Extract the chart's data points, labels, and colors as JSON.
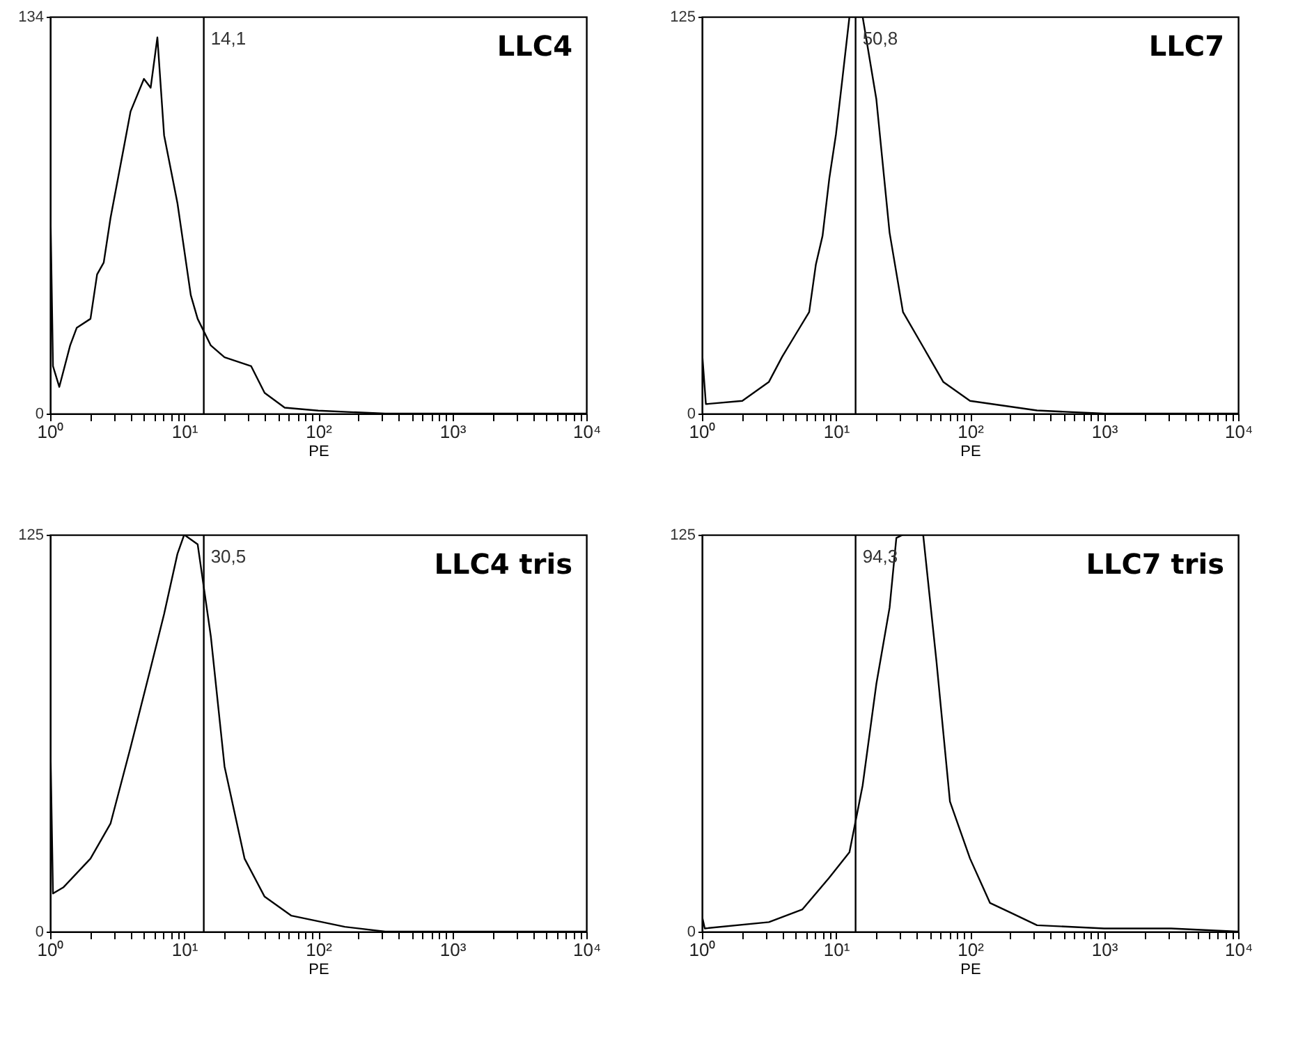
{
  "chart_data": [
    {
      "type": "line",
      "title": "LLC4",
      "xlabel": "PE",
      "log": "x",
      "color": "#000000",
      "xlim": [
        1,
        10000
      ],
      "ylim": [
        0,
        134
      ],
      "yticks": [
        0,
        134
      ],
      "xticks": [
        {
          "value": 1,
          "label": "10⁰"
        },
        {
          "value": 2,
          "label": null
        },
        {
          "value": 3,
          "label": null
        },
        {
          "value": 4,
          "label": null
        },
        {
          "value": 5,
          "label": null
        },
        {
          "value": 6,
          "label": null
        },
        {
          "value": 7,
          "label": null
        },
        {
          "value": 8,
          "label": null
        },
        {
          "value": 9,
          "label": null
        },
        {
          "value": 10,
          "label": "10¹"
        },
        {
          "value": 20,
          "label": null
        },
        {
          "value": 30,
          "label": null
        },
        {
          "value": 40,
          "label": null
        },
        {
          "value": 50,
          "label": null
        },
        {
          "value": 60,
          "label": null
        },
        {
          "value": 70,
          "label": null
        },
        {
          "value": 80,
          "label": null
        },
        {
          "value": 90,
          "label": null
        },
        {
          "value": 100,
          "label": "10²"
        },
        {
          "value": 200,
          "label": null
        },
        {
          "value": 300,
          "label": null
        },
        {
          "value": 400,
          "label": null
        },
        {
          "value": 500,
          "label": null
        },
        {
          "value": 600,
          "label": null
        },
        {
          "value": 700,
          "label": null
        },
        {
          "value": 800,
          "label": null
        },
        {
          "value": 900,
          "label": null
        },
        {
          "value": 1000,
          "label": "10³"
        },
        {
          "value": 2000,
          "label": null
        },
        {
          "value": 3000,
          "label": null
        },
        {
          "value": 4000,
          "label": null
        },
        {
          "value": 5000,
          "label": null
        },
        {
          "value": 6000,
          "label": null
        },
        {
          "value": 7000,
          "label": null
        },
        {
          "value": 8000,
          "label": null
        },
        {
          "value": 9000,
          "label": null
        },
        {
          "value": 10000,
          "label": "10⁴"
        }
      ],
      "x": [
        1,
        1.05,
        1.17,
        1.41,
        1.58,
        2,
        2.24,
        2.51,
        2.82,
        3.55,
        3.98,
        5.01,
        5.62,
        6.31,
        7.08,
        8.91,
        11.2,
        12.6,
        15.8,
        20,
        31.6,
        39.8,
        56.2,
        100,
        316,
        1000,
        3162,
        10000
      ],
      "values": [
        75,
        16,
        9,
        23,
        29,
        32,
        47,
        51,
        66,
        90,
        102,
        113,
        110,
        127,
        94,
        71,
        40,
        32,
        23,
        19,
        16,
        7,
        2,
        1,
        0,
        0,
        0,
        0
      ],
      "ref_lines": [
        {
          "axis": "x",
          "value": 14
        }
      ],
      "annotations": [
        "14,1"
      ]
    },
    {
      "type": "line",
      "title": "LLC7",
      "xlabel": "PE",
      "log": "x",
      "color": "#000000",
      "xlim": [
        1,
        10000
      ],
      "ylim": [
        0,
        125
      ],
      "yticks": [
        0,
        125
      ],
      "xticks": [
        {
          "value": 1,
          "label": "10⁰"
        },
        {
          "value": 2,
          "label": null
        },
        {
          "value": 3,
          "label": null
        },
        {
          "value": 4,
          "label": null
        },
        {
          "value": 5,
          "label": null
        },
        {
          "value": 6,
          "label": null
        },
        {
          "value": 7,
          "label": null
        },
        {
          "value": 8,
          "label": null
        },
        {
          "value": 9,
          "label": null
        },
        {
          "value": 10,
          "label": "10¹"
        },
        {
          "value": 20,
          "label": null
        },
        {
          "value": 30,
          "label": null
        },
        {
          "value": 40,
          "label": null
        },
        {
          "value": 50,
          "label": null
        },
        {
          "value": 60,
          "label": null
        },
        {
          "value": 70,
          "label": null
        },
        {
          "value": 80,
          "label": null
        },
        {
          "value": 90,
          "label": null
        },
        {
          "value": 100,
          "label": "10²"
        },
        {
          "value": 200,
          "label": null
        },
        {
          "value": 300,
          "label": null
        },
        {
          "value": 400,
          "label": null
        },
        {
          "value": 500,
          "label": null
        },
        {
          "value": 600,
          "label": null
        },
        {
          "value": 700,
          "label": null
        },
        {
          "value": 800,
          "label": null
        },
        {
          "value": 900,
          "label": null
        },
        {
          "value": 1000,
          "label": "10³"
        },
        {
          "value": 2000,
          "label": null
        },
        {
          "value": 3000,
          "label": null
        },
        {
          "value": 4000,
          "label": null
        },
        {
          "value": 5000,
          "label": null
        },
        {
          "value": 6000,
          "label": null
        },
        {
          "value": 7000,
          "label": null
        },
        {
          "value": 8000,
          "label": null
        },
        {
          "value": 9000,
          "label": null
        },
        {
          "value": 10000,
          "label": "10⁴"
        }
      ],
      "x": [
        1,
        1.07,
        2,
        3.16,
        3.98,
        5.01,
        6.31,
        7.08,
        7.94,
        8.91,
        10,
        11.2,
        12.6,
        15.8,
        20,
        25.1,
        31.6,
        44.7,
        63.1,
        100,
        316,
        1000,
        3162,
        10000
      ],
      "values": [
        20,
        3,
        4,
        10,
        18,
        25,
        32,
        47,
        56,
        74,
        88,
        106,
        125,
        125,
        99,
        57,
        32,
        21,
        10,
        4,
        1,
        0,
        0,
        0
      ],
      "ref_lines": [
        {
          "axis": "x",
          "value": 14
        }
      ],
      "annotations": [
        "50,8"
      ]
    },
    {
      "type": "line",
      "title": "LLC4 tris",
      "xlabel": "PE",
      "log": "x",
      "color": "#000000",
      "xlim": [
        1,
        10000
      ],
      "ylim": [
        0,
        125
      ],
      "yticks": [
        0,
        125
      ],
      "xticks": [
        {
          "value": 1,
          "label": "10⁰"
        },
        {
          "value": 2,
          "label": null
        },
        {
          "value": 3,
          "label": null
        },
        {
          "value": 4,
          "label": null
        },
        {
          "value": 5,
          "label": null
        },
        {
          "value": 6,
          "label": null
        },
        {
          "value": 7,
          "label": null
        },
        {
          "value": 8,
          "label": null
        },
        {
          "value": 9,
          "label": null
        },
        {
          "value": 10,
          "label": "10¹"
        },
        {
          "value": 20,
          "label": null
        },
        {
          "value": 30,
          "label": null
        },
        {
          "value": 40,
          "label": null
        },
        {
          "value": 50,
          "label": null
        },
        {
          "value": 60,
          "label": null
        },
        {
          "value": 70,
          "label": null
        },
        {
          "value": 80,
          "label": null
        },
        {
          "value": 90,
          "label": null
        },
        {
          "value": 100,
          "label": "10²"
        },
        {
          "value": 200,
          "label": null
        },
        {
          "value": 300,
          "label": null
        },
        {
          "value": 400,
          "label": null
        },
        {
          "value": 500,
          "label": null
        },
        {
          "value": 600,
          "label": null
        },
        {
          "value": 700,
          "label": null
        },
        {
          "value": 800,
          "label": null
        },
        {
          "value": 900,
          "label": null
        },
        {
          "value": 1000,
          "label": "10³"
        },
        {
          "value": 2000,
          "label": null
        },
        {
          "value": 3000,
          "label": null
        },
        {
          "value": 4000,
          "label": null
        },
        {
          "value": 5000,
          "label": null
        },
        {
          "value": 6000,
          "label": null
        },
        {
          "value": 7000,
          "label": null
        },
        {
          "value": 8000,
          "label": null
        },
        {
          "value": 9000,
          "label": null
        },
        {
          "value": 10000,
          "label": "10⁴"
        }
      ],
      "x": [
        1,
        1.05,
        1.26,
        2,
        2.82,
        3.98,
        5.62,
        7.08,
        8.91,
        10,
        12.6,
        15.8,
        20,
        28.2,
        39.8,
        63.1,
        158,
        316,
        1000,
        10000
      ],
      "values": [
        64,
        12,
        14,
        23,
        34,
        58,
        83,
        100,
        119,
        125,
        122,
        93,
        52,
        23,
        11,
        5,
        1.5,
        0,
        0,
        0
      ],
      "ref_lines": [
        {
          "axis": "x",
          "value": 14
        }
      ],
      "annotations": [
        "30,5"
      ]
    },
    {
      "type": "line",
      "title": "LLC7 tris",
      "xlabel": "PE",
      "log": "x",
      "color": "#000000",
      "xlim": [
        1,
        10000
      ],
      "ylim": [
        0,
        125
      ],
      "yticks": [
        0,
        125
      ],
      "xticks": [
        {
          "value": 1,
          "label": "10⁰"
        },
        {
          "value": 2,
          "label": null
        },
        {
          "value": 3,
          "label": null
        },
        {
          "value": 4,
          "label": null
        },
        {
          "value": 5,
          "label": null
        },
        {
          "value": 6,
          "label": null
        },
        {
          "value": 7,
          "label": null
        },
        {
          "value": 8,
          "label": null
        },
        {
          "value": 9,
          "label": null
        },
        {
          "value": 10,
          "label": "10¹"
        },
        {
          "value": 20,
          "label": null
        },
        {
          "value": 30,
          "label": null
        },
        {
          "value": 40,
          "label": null
        },
        {
          "value": 50,
          "label": null
        },
        {
          "value": 60,
          "label": null
        },
        {
          "value": 70,
          "label": null
        },
        {
          "value": 80,
          "label": null
        },
        {
          "value": 90,
          "label": null
        },
        {
          "value": 100,
          "label": "10²"
        },
        {
          "value": 200,
          "label": null
        },
        {
          "value": 300,
          "label": null
        },
        {
          "value": 400,
          "label": null
        },
        {
          "value": 500,
          "label": null
        },
        {
          "value": 600,
          "label": null
        },
        {
          "value": 700,
          "label": null
        },
        {
          "value": 800,
          "label": null
        },
        {
          "value": 900,
          "label": null
        },
        {
          "value": 1000,
          "label": "10³"
        },
        {
          "value": 2000,
          "label": null
        },
        {
          "value": 3000,
          "label": null
        },
        {
          "value": 4000,
          "label": null
        },
        {
          "value": 5000,
          "label": null
        },
        {
          "value": 6000,
          "label": null
        },
        {
          "value": 7000,
          "label": null
        },
        {
          "value": 8000,
          "label": null
        },
        {
          "value": 9000,
          "label": null
        },
        {
          "value": 10000,
          "label": "10⁴"
        }
      ],
      "x": [
        1,
        1.05,
        3.16,
        5.62,
        8.91,
        12.6,
        15.8,
        20,
        25.1,
        28.2,
        31.6,
        44.7,
        56.2,
        70.8,
        100,
        141,
        200,
        316,
        1000,
        3162,
        10000
      ],
      "values": [
        5,
        1,
        3,
        7,
        17,
        25,
        46,
        78,
        102,
        124,
        125,
        125,
        85,
        41,
        23,
        9,
        6,
        2,
        1,
        1,
        0
      ],
      "ref_lines": [
        {
          "axis": "x",
          "value": 14
        }
      ],
      "annotations": [
        "94,3"
      ]
    }
  ]
}
